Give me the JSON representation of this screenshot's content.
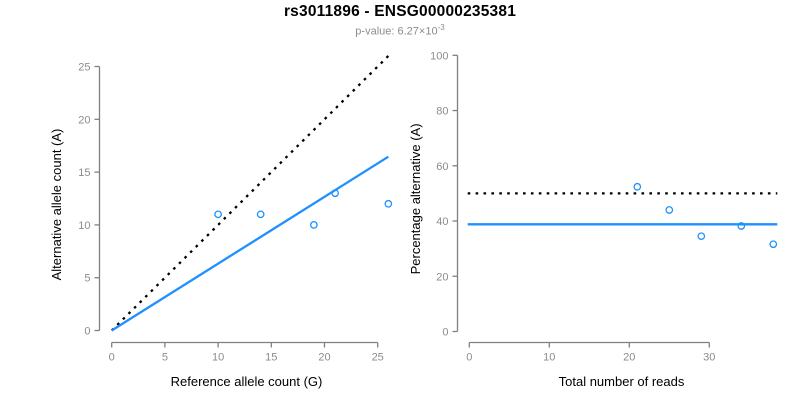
{
  "figure": {
    "title": "rs3011896 - ENSG00000235381",
    "subtitle_prefix": "p-value: 6.27×10",
    "subtitle_exponent": "-3"
  },
  "style": {
    "accent_blue": "#1E90FF",
    "dotted_black": "#000000",
    "axis_gray": "#808080",
    "tick_text_gray": "#8c8c8c",
    "axis_title_black": "#000000"
  },
  "chart_data": [
    {
      "type": "scatter",
      "panel": "left",
      "title": "",
      "xlabel": "Reference allele count (G)",
      "ylabel": "Alternative allele count (A)",
      "xlim": [
        0,
        26
      ],
      "ylim": [
        0,
        26
      ],
      "xticks": [
        0,
        5,
        10,
        15,
        20,
        25
      ],
      "yticks": [
        0,
        5,
        10,
        15,
        20,
        25
      ],
      "grid": false,
      "legend": false,
      "points": [
        [
          10,
          11
        ],
        [
          14,
          11
        ],
        [
          19,
          10
        ],
        [
          21,
          13
        ],
        [
          26,
          12
        ]
      ],
      "lines": [
        {
          "name": "identity-line",
          "kind": "abline",
          "intercept": 0,
          "slope": 1,
          "style": "dotted",
          "color": "#000000"
        },
        {
          "name": "fit-line",
          "kind": "abline",
          "intercept": 0,
          "slope": 0.633,
          "style": "solid",
          "color": "#1E90FF"
        }
      ]
    },
    {
      "type": "scatter",
      "panel": "right",
      "title": "",
      "xlabel": "Total number of reads",
      "ylabel": "Percentage alternative (A)",
      "xlim": [
        0,
        38.5
      ],
      "ylim": [
        0,
        100
      ],
      "xticks": [
        0,
        10,
        20,
        30
      ],
      "yticks": [
        0,
        20,
        40,
        60,
        80,
        100
      ],
      "grid": false,
      "legend": false,
      "points": [
        [
          21,
          52.4
        ],
        [
          25,
          44
        ],
        [
          29,
          34.5
        ],
        [
          34,
          38.2
        ],
        [
          38,
          31.6
        ]
      ],
      "lines": [
        {
          "name": "expected-50pct-line",
          "kind": "hline",
          "y": 50,
          "style": "dotted",
          "color": "#000000"
        },
        {
          "name": "observed-ratio-line",
          "kind": "hline",
          "y": 38.8,
          "style": "solid",
          "color": "#1E90FF"
        }
      ]
    }
  ]
}
